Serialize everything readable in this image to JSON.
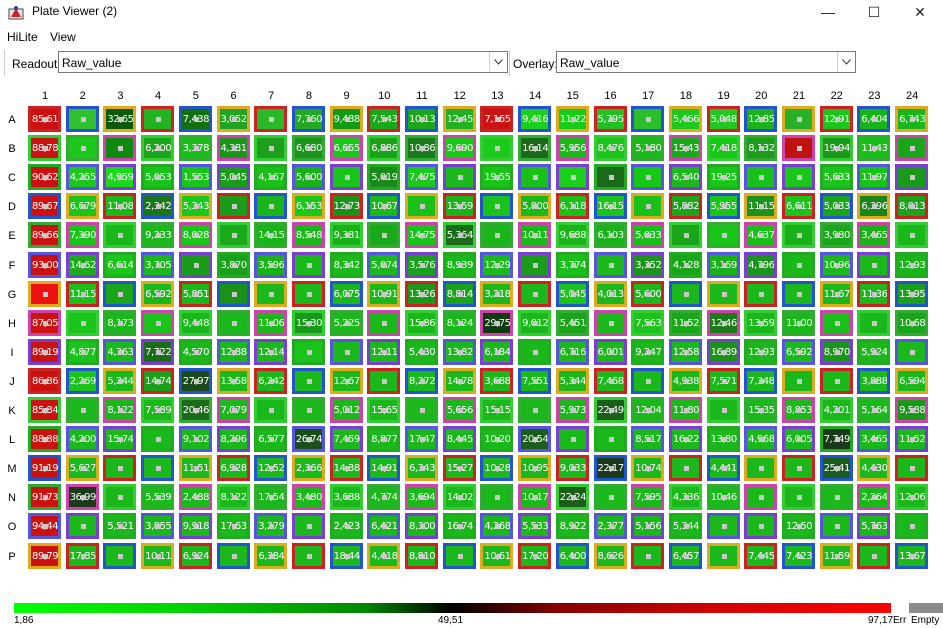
{
  "window": {
    "title": "Plate Viewer (2)",
    "minimize": "—",
    "maximize": "☐",
    "close": "✕"
  },
  "menu": [
    "HiLite",
    "View"
  ],
  "toolbar": {
    "readout_label": "Readout:",
    "readout_value": "Raw_value",
    "overlay_label": "Overlay:",
    "overlay_value": "Raw_value"
  },
  "plate": {
    "columns": [
      "1",
      "2",
      "3",
      "4",
      "5",
      "6",
      "7",
      "8",
      "9",
      "10",
      "11",
      "12",
      "13",
      "14",
      "15",
      "16",
      "17",
      "18",
      "19",
      "20",
      "21",
      "22",
      "23",
      "24"
    ],
    "rows": [
      "A",
      "B",
      "C",
      "D",
      "E",
      "F",
      "G",
      "H",
      "I",
      "J",
      "K",
      "L",
      "M",
      "N",
      "O",
      "P"
    ],
    "cells": [
      [
        "85,619",
        "",
        "32,650",
        "",
        "7,438",
        "3,052",
        "",
        "7,760",
        "9,488",
        "7,543",
        "10,130",
        "12,455",
        "7,165",
        "9,416",
        "11,224",
        "5,795",
        "",
        "5,466",
        "5,048",
        "12,854",
        "",
        "12,911",
        "6,404",
        "6,743"
      ],
      [
        "88,789",
        "",
        "",
        "6,200",
        "3,378",
        "4,381",
        "",
        "6,680",
        "6,655",
        "6,886",
        "10,863",
        "9,690",
        "",
        "16,147",
        "5,956",
        "8,476",
        "5,180",
        "15,430",
        "7,418",
        "8,132",
        "",
        "19,942",
        "11,434",
        ""
      ],
      [
        "90,620",
        "4,255",
        "4,959",
        "5,053",
        "1,553",
        "5,045",
        "4,167",
        "5,600",
        "",
        "5,019",
        "7,475",
        "",
        "19,552",
        "",
        "",
        "",
        "",
        "6,540",
        "19,258",
        "",
        "",
        "5,633",
        "11,971",
        ""
      ],
      [
        "89,674",
        "6,679",
        "11,088",
        "2,342",
        "5,343",
        "",
        "",
        "6,153",
        "12,730",
        "10,674",
        "",
        "13,596",
        "",
        "5,800",
        "6,118",
        "16,159",
        "",
        "5,882",
        "5,955",
        "11,151",
        "6,611",
        "5,033",
        "6,396",
        "8,013"
      ],
      [
        "89,661",
        "7,390",
        "",
        "9,233",
        "8,028",
        "",
        "14,153",
        "8,548",
        "9,381",
        "",
        "14,750",
        "5,364",
        "",
        "10,119",
        "9,688",
        "6,103",
        "5,033",
        "",
        "",
        "4,637",
        "",
        "3,980",
        "3,465",
        ""
      ],
      [
        "93,002",
        "14,628",
        "6,614",
        "3,705",
        "",
        "3,870",
        "3,596",
        "",
        "8,342",
        "5,074",
        "3,576",
        "8,939",
        "12,290",
        "",
        "3,774",
        "",
        "3,352",
        "4,128",
        "3,169",
        "4,796",
        "",
        "10,961",
        "",
        "12,931"
      ],
      [
        "",
        "11,153",
        "",
        "6,592",
        "5,851",
        "",
        "",
        "",
        "6,075",
        "10,919",
        "13,266",
        "8,814",
        "3,218",
        "",
        "5,045",
        "4,013",
        "5,600",
        "",
        "",
        "",
        "",
        "11,676",
        "11,368",
        "13,951"
      ],
      [
        "87,054",
        "",
        "8,173",
        "",
        "9,448",
        "",
        "11,064",
        "15,303",
        "5,225",
        "",
        "15,869",
        "8,124",
        "29,754",
        "9,012",
        "5,451",
        "",
        "7,563",
        "11,520",
        "12,463",
        "13,594",
        "11,000",
        "",
        "",
        "10,681"
      ],
      [
        "89,194",
        "4,877",
        "4,363",
        "7,722",
        "4,570",
        "12,886",
        "12,148",
        "",
        "",
        "12,113",
        "5,430",
        "13,820",
        "6,184",
        "",
        "6,716",
        "6,001",
        "9,247",
        "12,589",
        "16,893",
        "12,932",
        "6,592",
        "8,970",
        "5,924",
        ""
      ],
      [
        "86,868",
        "2,269",
        "5,244",
        "14,741",
        "27,972",
        "13,589",
        "6,242",
        "",
        "12,678",
        "",
        "8,272",
        "14,789",
        "3,688",
        "7,551",
        "5,344",
        "7,468",
        "",
        "4,938",
        "7,571",
        "7,348",
        "",
        "",
        "3,888",
        "6,594"
      ],
      [
        "85,844",
        "",
        "8,122",
        "7,589",
        "20,463",
        "7,079",
        "",
        "",
        "5,012",
        "15,654",
        "",
        "5,656",
        "15,159",
        "",
        "5,973",
        "22,492",
        "12,047",
        "11,809",
        "",
        "15,357",
        "8,853",
        "4,201",
        "5,164",
        "9,588"
      ],
      [
        "88,881",
        "4,200",
        "15,741",
        "",
        "9,102",
        "8,296",
        "6,577",
        "26,741",
        "7,459",
        "8,877",
        "17,470",
        "8,445",
        "10,204",
        "20,543",
        "",
        "",
        "8,517",
        "16,220",
        "13,801",
        "4,968",
        "6,005",
        "7,749",
        "3,465",
        "11,520"
      ],
      [
        "91,195",
        "5,627",
        "",
        "",
        "11,518",
        "6,928",
        "12,520",
        "2,366",
        "14,389",
        "14,910",
        "6,343",
        "15,274",
        "10,282",
        "10,952",
        "9,033",
        "22,170",
        "10,740",
        "",
        "4,441",
        "",
        "",
        "25,418",
        "4,430",
        ""
      ],
      [
        "91,730",
        "36,993",
        "",
        "5,539",
        "2,488",
        "8,122",
        "17,540",
        "3,480",
        "3,688",
        "4,774",
        "3,694",
        "14,028",
        "",
        "10,170",
        "22,249",
        "",
        "7,595",
        "4,336",
        "10,466",
        "",
        "",
        "",
        "2,264",
        "12,066"
      ],
      [
        "94,448",
        "",
        "5,521",
        "3,855",
        "9,918",
        "17,638",
        "3,279",
        "",
        "2,423",
        "6,421",
        "8,300",
        "16,744",
        "4,268",
        "5,533",
        "8,922",
        "2,377",
        "5,156",
        "5,344",
        "",
        "",
        "12,502",
        "",
        "5,763",
        ""
      ],
      [
        "89,790",
        "17,857",
        "",
        "10,115",
        "6,924",
        "",
        "6,384",
        "",
        "18,440",
        "4,418",
        "8,810",
        "",
        "10,615",
        "17,209",
        "6,400",
        "8,626",
        "",
        "6,457",
        "",
        "7,445",
        "7,423",
        "11,592",
        "",
        "13,671"
      ]
    ],
    "fills": [
      [
        "#cc1010",
        "#30c030",
        "#0a5a0a",
        "#22b322",
        "#127012",
        "#22a322",
        "#28b828",
        "#22a822",
        "#129a12",
        "#18a818",
        "#1aa51a",
        "#20b020",
        "#cc1212",
        "#1ad01a",
        "#16cc16",
        "#22bf22",
        "#2abf2a",
        "#1fc81f",
        "#20c820",
        "#1cb21c",
        "#28b028",
        "#1cc51c",
        "#16b416",
        "#1ab51a"
      ],
      [
        "#cc1212",
        "#1bc81b",
        "#0e8a0e",
        "#1da41d",
        "#1dbd1d",
        "#1a961a",
        "#1d9f1d",
        "#1a951a",
        "#1cc51c",
        "#1aa31a",
        "#1a7c1a",
        "#1ac81a",
        "#1acb1a",
        "#1a6a1a",
        "#18b918",
        "#1cc41c",
        "#1cb81c",
        "#1aa91a",
        "#16c816",
        "#1a9c1a",
        "#c01010",
        "#1a991a",
        "#1ac01a",
        "#1ba51b"
      ],
      [
        "#cc1010",
        "#1ac71a",
        "#1bd81b",
        "#19c319",
        "#18c518",
        "#1a9c1a",
        "#18c018",
        "#1ab01a",
        "#18c418",
        "#1a8a1a",
        "#1bc81b",
        "#1ab81a",
        "#18c418",
        "#18c018",
        "#1ad01a",
        "#1a6a1a",
        "#16c816",
        "#1ab81a",
        "#18c818",
        "#1ac01a",
        "#1ac61a",
        "#1ac41a",
        "#16c416",
        "#1a991a"
      ],
      [
        "#cc1111",
        "#1ac41a",
        "#1ab81a",
        "#1a761a",
        "#1cc81c",
        "#1a9c1a",
        "#1ab51a",
        "#1ac81a",
        "#1a911a",
        "#1ab81a",
        "#1ac01a",
        "#1ab41a",
        "#1ac31a",
        "#1ab81a",
        "#18c018",
        "#1ac41a",
        "#1ac01a",
        "#1aa51a",
        "#18c518",
        "#1a931a",
        "#1ac41a",
        "#1aa41a",
        "#1a851a",
        "#1aa21a"
      ],
      [
        "#cc1111",
        "#18c418",
        "#1ab81a",
        "#1ab81a",
        "#1ac61a",
        "#1aa91a",
        "#1ab41a",
        "#1ab91a",
        "#1ab01a",
        "#1aa91a",
        "#1ac41a",
        "#1a6a1a",
        "#1ab41a",
        "#1ab81a",
        "#1ab31a",
        "#1ab41a",
        "#1ac01a",
        "#1aa51a",
        "#18c518",
        "#1ac01a",
        "#1ab01a",
        "#1aa71a",
        "#1ab11a",
        "#1ab81a"
      ],
      [
        "#cc0f0f",
        "#1aaa1a",
        "#1ac41a",
        "#1ab81a",
        "#1a9c1a",
        "#1aa01a",
        "#1ab01a",
        "#1ab81a",
        "#1ab81a",
        "#1ab81a",
        "#1aa01a",
        "#1ab81a",
        "#1ab81a",
        "#1a9c1a",
        "#1ac01a",
        "#1ab81a",
        "#1a941a",
        "#1aa41a",
        "#1ab01a",
        "#1a941a",
        "#1ab81a",
        "#1ab81a",
        "#1ab81a",
        "#1ab41a"
      ],
      [
        "#ee1111",
        "#1ac01a",
        "#1aa51a",
        "#1ab81a",
        "#1ab81a",
        "#1a921a",
        "#1ab81a",
        "#1ab81a",
        "#1ab81a",
        "#1ab81a",
        "#1a981a",
        "#1aa21a",
        "#1ab81a",
        "#1ab81a",
        "#1ac41a",
        "#1ab81a",
        "#1ab81a",
        "#1ab81a",
        "#1ab81a",
        "#1ab81a",
        "#1ab81a",
        "#1ab81a",
        "#1ab81a",
        "#1aa01a"
      ],
      [
        "#cc1111",
        "#1ac41a",
        "#1ab81a",
        "#1ac41a",
        "#1ab81a",
        "#1ab81a",
        "#1ab81a",
        "#1a981a",
        "#1ab81a",
        "#1ab81a",
        "#1ab81a",
        "#1ab81a",
        "#0f3a0f",
        "#1ab81a",
        "#1aa41a",
        "#1ab81a",
        "#1ac41a",
        "#1aa81a",
        "#1a7a1a",
        "#1ab81a",
        "#1ab81a",
        "#1ac01a",
        "#1ab81a",
        "#1aa41a"
      ],
      [
        "#cc1111",
        "#1ac41a",
        "#1ab81a",
        "#1a6e1a",
        "#1ab81a",
        "#1ab81a",
        "#1ab81a",
        "#1ac41a",
        "#1ab81a",
        "#1ab81a",
        "#1ab81a",
        "#1ab81a",
        "#1ab81a",
        "#1ab81a",
        "#1ab81a",
        "#1ab81a",
        "#1ab81a",
        "#1ab81a",
        "#1a921a",
        "#1ab81a",
        "#1ab81a",
        "#1a951a",
        "#1ab81a",
        "#1ab81a"
      ],
      [
        "#cc1111",
        "#1ac41a",
        "#1ab81a",
        "#1aa01a",
        "#1a4a1a",
        "#1ab81a",
        "#1ab81a",
        "#1ab81a",
        "#1ab81a",
        "#1ab81a",
        "#1ab81a",
        "#1ab81a",
        "#1ab81a",
        "#1ab81a",
        "#1ab81a",
        "#1ab81a",
        "#1ab81a",
        "#1ab81a",
        "#1ab81a",
        "#1ab81a",
        "#1ab81a",
        "#1ab81a",
        "#1ab81a",
        "#1ab81a"
      ],
      [
        "#cc1111",
        "#1ab81a",
        "#1ab81a",
        "#1ab81a",
        "#1a6a1a",
        "#1ab81a",
        "#1ab81a",
        "#1ab81a",
        "#1ab81a",
        "#1ab81a",
        "#1ab81a",
        "#1ab81a",
        "#1ab81a",
        "#1ab81a",
        "#1ab81a",
        "#1a5e1a",
        "#1ab81a",
        "#1ab81a",
        "#1ab81a",
        "#1ab81a",
        "#1ab81a",
        "#1ab81a",
        "#1ab81a",
        "#1a981a"
      ],
      [
        "#cc1111",
        "#1ab81a",
        "#1ab81a",
        "#1ab81a",
        "#1ab81a",
        "#1ab81a",
        "#1ab81a",
        "#1a4f1a",
        "#1ab81a",
        "#1ab81a",
        "#1ab81a",
        "#1ab81a",
        "#1ab81a",
        "#1a5e1a",
        "#1ab81a",
        "#1ab81a",
        "#1ab81a",
        "#1ab81a",
        "#1ab81a",
        "#1ab81a",
        "#1ab81a",
        "#1a3a1a",
        "#1ab81a",
        "#1ab81a"
      ],
      [
        "#cc1111",
        "#1ab81a",
        "#1ab81a",
        "#1ab81a",
        "#1ab81a",
        "#1ab81a",
        "#1ab81a",
        "#1ab81a",
        "#1ab81a",
        "#1ab81a",
        "#1ab81a",
        "#1ab81a",
        "#1ab81a",
        "#1ab81a",
        "#1ab81a",
        "#1a3a1a",
        "#1ab81a",
        "#1ab81a",
        "#1ab81a",
        "#1ab81a",
        "#1ab81a",
        "#1a5a1a",
        "#1ab81a",
        "#1ab81a"
      ],
      [
        "#cc1111",
        "#1a3a1a",
        "#1ab81a",
        "#1ab81a",
        "#1ab81a",
        "#1ab81a",
        "#1ab81a",
        "#1ab81a",
        "#1ab81a",
        "#1ab81a",
        "#1ab81a",
        "#1ab81a",
        "#1ab81a",
        "#1ab81a",
        "#1a5e1a",
        "#1ab81a",
        "#1ab81a",
        "#1ab81a",
        "#1ab81a",
        "#1ab81a",
        "#1ab81a",
        "#1ab81a",
        "#1ab81a",
        "#1ab81a"
      ],
      [
        "#cc1111",
        "#1ab81a",
        "#1ab81a",
        "#1ab81a",
        "#1ab81a",
        "#1ab81a",
        "#1ab81a",
        "#1ab81a",
        "#1ab81a",
        "#1ab81a",
        "#1ab81a",
        "#1ab81a",
        "#1ab81a",
        "#1ab81a",
        "#1ab81a",
        "#1ab81a",
        "#1ab81a",
        "#1ab81a",
        "#1ab81a",
        "#1ab81a",
        "#1ab81a",
        "#1ab81a",
        "#1ab81a",
        "#1ab81a"
      ],
      [
        "#cc1111",
        "#1ab81a",
        "#1ab81a",
        "#1ab81a",
        "#1ab81a",
        "#1ab81a",
        "#1ab81a",
        "#1ab81a",
        "#1ab81a",
        "#1ab81a",
        "#1ab81a",
        "#1ab81a",
        "#1ab81a",
        "#1ab81a",
        "#1ab81a",
        "#1ab81a",
        "#1ab81a",
        "#1ab81a",
        "#1ab81a",
        "#1ab81a",
        "#1ab81a",
        "#1ab81a",
        "#1ab81a",
        "#1ab81a"
      ]
    ],
    "border_colors": [
      "#cc2222",
      "#33aa33",
      "#7a3fd0",
      "#2255cc",
      "#cc44aa",
      "#22aa22",
      "#ddaa22",
      "#33cc33",
      "#5555dd"
    ]
  },
  "legend": {
    "min": "1,86",
    "mid": "49,51",
    "max": "97,17",
    "err": "Err",
    "empty": "Empty"
  }
}
